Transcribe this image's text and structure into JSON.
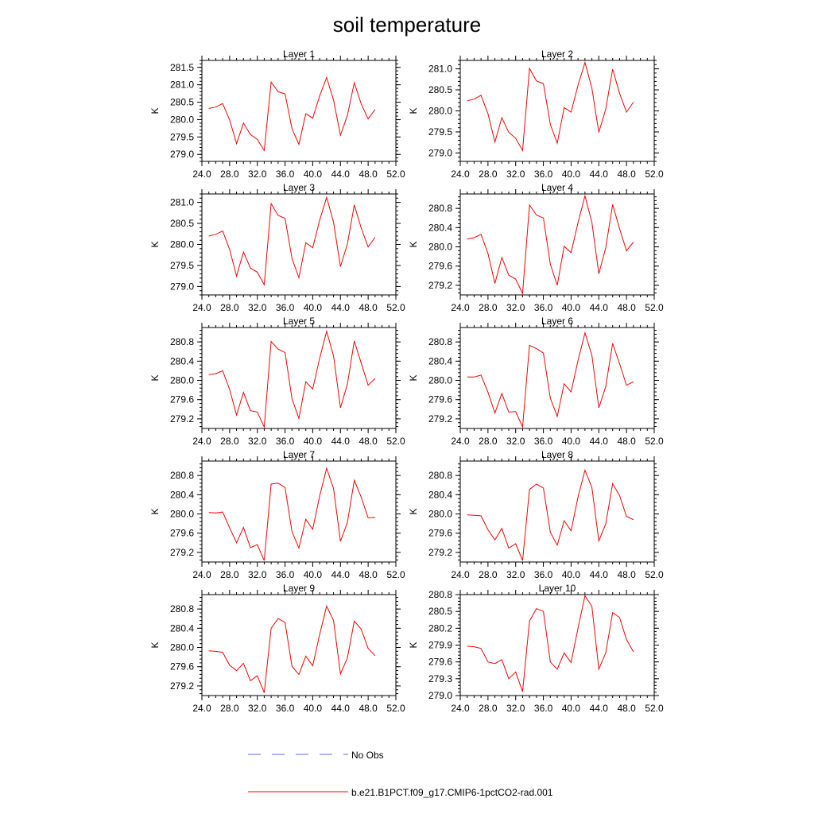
{
  "title": "soil temperature",
  "colors": {
    "model": "#ff0000",
    "obs": "#5b6fd6",
    "axis": "#000000"
  },
  "legend": [
    {
      "label": "No Obs",
      "style": "dashed",
      "color": "#5b6fd6"
    },
    {
      "label": "b.e21.B1PCT.f09_g17.CMIP6-1pctCO2-rad.001",
      "style": "solid",
      "color": "#ff0000"
    }
  ],
  "chart_data": [
    {
      "type": "line",
      "title": "Layer 1",
      "ylabel": "K",
      "xlim": [
        24,
        52
      ],
      "ylim": [
        278.8,
        281.7
      ],
      "xticks": [
        "24.0",
        "28.0",
        "32.0",
        "36.0",
        "40.0",
        "44.0",
        "48.0",
        "52.0"
      ],
      "yticks": [
        "279.0",
        "279.5",
        "280.0",
        "280.5",
        "281.0",
        "281.5"
      ],
      "series": [
        {
          "x": [
            25,
            26,
            27,
            28,
            29,
            30,
            31,
            32,
            33,
            34,
            35,
            36,
            37,
            38,
            39,
            40,
            41,
            42,
            43,
            44,
            45,
            46,
            47,
            48,
            49
          ],
          "y": [
            280.32,
            280.36,
            280.46,
            279.99,
            279.31,
            279.9,
            279.57,
            279.43,
            279.11,
            281.08,
            280.8,
            280.74,
            279.74,
            279.29,
            280.17,
            280.04,
            280.68,
            281.21,
            280.56,
            279.55,
            280.12,
            281.06,
            280.45,
            280.02,
            280.29
          ]
        }
      ]
    },
    {
      "type": "line",
      "title": "Layer 2",
      "ylabel": "K",
      "xlim": [
        24,
        52
      ],
      "ylim": [
        278.8,
        281.2
      ],
      "xticks": [
        "24.0",
        "28.0",
        "32.0",
        "36.0",
        "40.0",
        "44.0",
        "48.0",
        "52.0"
      ],
      "yticks": [
        "279.0",
        "279.5",
        "280.0",
        "280.5",
        "281.0"
      ],
      "series": [
        {
          "x": [
            25,
            26,
            27,
            28,
            29,
            30,
            31,
            32,
            33,
            34,
            35,
            36,
            37,
            38,
            39,
            40,
            41,
            42,
            43,
            44,
            45,
            46,
            47,
            48,
            49
          ],
          "y": [
            280.24,
            280.28,
            280.37,
            279.93,
            279.26,
            279.84,
            279.49,
            279.35,
            279.06,
            281.01,
            280.71,
            280.65,
            279.68,
            279.23,
            280.08,
            279.97,
            280.61,
            281.15,
            280.54,
            279.49,
            280.04,
            280.99,
            280.42,
            279.97,
            280.21
          ]
        }
      ]
    },
    {
      "type": "line",
      "title": "Layer 3",
      "ylabel": "K",
      "xlim": [
        24,
        52
      ],
      "ylim": [
        278.8,
        281.2
      ],
      "xticks": [
        "24.0",
        "28.0",
        "32.0",
        "36.0",
        "40.0",
        "44.0",
        "48.0",
        "52.0"
      ],
      "yticks": [
        "279.0",
        "279.5",
        "280.0",
        "280.5",
        "281.0"
      ],
      "series": [
        {
          "x": [
            25,
            26,
            27,
            28,
            29,
            30,
            31,
            32,
            33,
            34,
            35,
            36,
            37,
            38,
            39,
            40,
            41,
            42,
            43,
            44,
            45,
            46,
            47,
            48,
            49
          ],
          "y": [
            280.2,
            280.24,
            280.32,
            279.88,
            279.25,
            279.82,
            279.44,
            279.34,
            279.04,
            280.97,
            280.69,
            280.62,
            279.67,
            279.21,
            280.04,
            279.92,
            280.57,
            281.12,
            280.53,
            279.47,
            280.01,
            280.94,
            280.39,
            279.94,
            280.17
          ]
        }
      ]
    },
    {
      "type": "line",
      "title": "Layer 4",
      "ylabel": "K",
      "xlim": [
        24,
        52
      ],
      "ylim": [
        279.0,
        281.1
      ],
      "xticks": [
        "24.0",
        "28.0",
        "32.0",
        "36.0",
        "40.0",
        "44.0",
        "48.0",
        "52.0"
      ],
      "yticks": [
        "279.2",
        "279.6",
        "280.0",
        "280.4",
        "280.8"
      ],
      "series": [
        {
          "x": [
            25,
            26,
            27,
            28,
            29,
            30,
            31,
            32,
            33,
            34,
            35,
            36,
            37,
            38,
            39,
            40,
            41,
            42,
            43,
            44,
            45,
            46,
            47,
            48,
            49
          ],
          "y": [
            280.16,
            280.19,
            280.26,
            279.86,
            279.24,
            279.78,
            279.41,
            279.33,
            279.03,
            280.87,
            280.66,
            280.6,
            279.64,
            279.2,
            280.01,
            279.88,
            280.5,
            281.06,
            280.51,
            279.44,
            279.98,
            280.88,
            280.38,
            279.92,
            280.1
          ]
        }
      ]
    },
    {
      "type": "line",
      "title": "Layer 5",
      "ylabel": "K",
      "xlim": [
        24,
        52
      ],
      "ylim": [
        279.0,
        281.1
      ],
      "xticks": [
        "24.0",
        "28.0",
        "32.0",
        "36.0",
        "40.0",
        "44.0",
        "48.0",
        "52.0"
      ],
      "yticks": [
        "279.2",
        "279.6",
        "280.0",
        "280.4",
        "280.8"
      ],
      "series": [
        {
          "x": [
            25,
            26,
            27,
            28,
            29,
            30,
            31,
            32,
            33,
            34,
            35,
            36,
            37,
            38,
            39,
            40,
            41,
            42,
            43,
            44,
            45,
            46,
            47,
            48,
            49
          ],
          "y": [
            280.12,
            280.14,
            280.2,
            279.81,
            279.28,
            279.75,
            279.37,
            279.34,
            279.03,
            280.81,
            280.65,
            280.58,
            279.62,
            279.21,
            279.97,
            279.82,
            280.46,
            281.02,
            280.51,
            279.43,
            279.92,
            280.82,
            280.36,
            279.9,
            280.04
          ]
        }
      ]
    },
    {
      "type": "line",
      "title": "Layer 6",
      "ylabel": "K",
      "xlim": [
        24,
        52
      ],
      "ylim": [
        279.0,
        281.1
      ],
      "xticks": [
        "24.0",
        "28.0",
        "32.0",
        "36.0",
        "40.0",
        "44.0",
        "48.0",
        "52.0"
      ],
      "yticks": [
        "279.2",
        "279.6",
        "280.0",
        "280.4",
        "280.8"
      ],
      "series": [
        {
          "x": [
            25,
            26,
            27,
            28,
            29,
            30,
            31,
            32,
            33,
            34,
            35,
            36,
            37,
            38,
            39,
            40,
            41,
            42,
            43,
            44,
            45,
            46,
            47,
            48,
            49
          ],
          "y": [
            280.07,
            280.07,
            280.11,
            279.75,
            279.32,
            279.73,
            279.34,
            279.35,
            279.03,
            280.73,
            280.66,
            280.57,
            279.63,
            279.25,
            279.93,
            279.76,
            280.41,
            280.99,
            280.52,
            279.43,
            279.87,
            280.77,
            280.35,
            279.9,
            279.97
          ]
        }
      ]
    },
    {
      "type": "line",
      "title": "Layer 7",
      "ylabel": "K",
      "xlim": [
        24,
        52
      ],
      "ylim": [
        279.0,
        281.1
      ],
      "xticks": [
        "24.0",
        "28.0",
        "32.0",
        "36.0",
        "40.0",
        "44.0",
        "48.0",
        "52.0"
      ],
      "yticks": [
        "279.2",
        "279.6",
        "280.0",
        "280.4",
        "280.8"
      ],
      "series": [
        {
          "x": [
            25,
            26,
            27,
            28,
            29,
            30,
            31,
            32,
            33,
            34,
            35,
            36,
            37,
            38,
            39,
            40,
            41,
            42,
            43,
            44,
            45,
            46,
            47,
            48,
            49
          ],
          "y": [
            280.03,
            280.02,
            280.04,
            279.71,
            279.4,
            279.72,
            279.3,
            279.36,
            279.03,
            280.62,
            280.64,
            280.55,
            279.63,
            279.29,
            279.89,
            279.68,
            280.37,
            280.95,
            280.53,
            279.43,
            279.82,
            280.7,
            280.35,
            279.92,
            279.93
          ]
        }
      ]
    },
    {
      "type": "line",
      "title": "Layer 8",
      "ylabel": "K",
      "xlim": [
        24,
        52
      ],
      "ylim": [
        279.0,
        281.1
      ],
      "xticks": [
        "24.0",
        "28.0",
        "32.0",
        "36.0",
        "40.0",
        "44.0",
        "48.0",
        "52.0"
      ],
      "yticks": [
        "279.2",
        "279.6",
        "280.0",
        "280.4",
        "280.8"
      ],
      "series": [
        {
          "x": [
            25,
            26,
            27,
            28,
            29,
            30,
            31,
            32,
            33,
            34,
            35,
            36,
            37,
            38,
            39,
            40,
            41,
            42,
            43,
            44,
            45,
            46,
            47,
            48,
            49
          ],
          "y": [
            279.98,
            279.97,
            279.96,
            279.67,
            279.46,
            279.7,
            279.29,
            279.38,
            279.03,
            280.51,
            280.62,
            280.54,
            279.62,
            279.35,
            279.86,
            279.65,
            280.35,
            280.91,
            280.55,
            279.44,
            279.79,
            280.63,
            280.38,
            279.95,
            279.88
          ]
        }
      ]
    },
    {
      "type": "line",
      "title": "Layer 9",
      "ylabel": "K",
      "xlim": [
        24,
        52
      ],
      "ylim": [
        279.0,
        281.1
      ],
      "xticks": [
        "24.0",
        "28.0",
        "32.0",
        "36.0",
        "40.0",
        "44.0",
        "48.0",
        "52.0"
      ],
      "yticks": [
        "279.2",
        "279.6",
        "280.0",
        "280.4",
        "280.8"
      ],
      "series": [
        {
          "x": [
            25,
            26,
            27,
            28,
            29,
            30,
            31,
            32,
            33,
            34,
            35,
            36,
            37,
            38,
            39,
            40,
            41,
            42,
            43,
            44,
            45,
            46,
            47,
            48,
            49
          ],
          "y": [
            279.93,
            279.92,
            279.9,
            279.63,
            279.52,
            279.67,
            279.31,
            279.41,
            279.06,
            280.4,
            280.6,
            280.52,
            279.61,
            279.44,
            279.82,
            279.62,
            280.27,
            280.86,
            280.56,
            279.45,
            279.78,
            280.55,
            280.38,
            279.98,
            279.83
          ]
        }
      ]
    },
    {
      "type": "line",
      "title": "Layer 10",
      "ylabel": "K",
      "xlim": [
        24,
        52
      ],
      "ylim": [
        279.0,
        280.8
      ],
      "xticks": [
        "24.0",
        "28.0",
        "32.0",
        "36.0",
        "40.0",
        "44.0",
        "48.0",
        "52.0"
      ],
      "yticks": [
        "279.0",
        "279.3",
        "279.6",
        "279.9",
        "280.2",
        "280.5",
        "280.8"
      ],
      "series": [
        {
          "x": [
            25,
            26,
            27,
            28,
            29,
            30,
            31,
            32,
            33,
            34,
            35,
            36,
            37,
            38,
            39,
            40,
            41,
            42,
            43,
            44,
            45,
            46,
            47,
            48,
            49
          ],
          "y": [
            279.88,
            279.87,
            279.84,
            279.6,
            279.57,
            279.64,
            279.3,
            279.42,
            279.07,
            280.33,
            280.55,
            280.5,
            279.6,
            279.47,
            279.76,
            279.59,
            280.2,
            280.78,
            280.59,
            279.47,
            279.76,
            280.48,
            280.39,
            280.0,
            279.78
          ]
        }
      ]
    }
  ]
}
